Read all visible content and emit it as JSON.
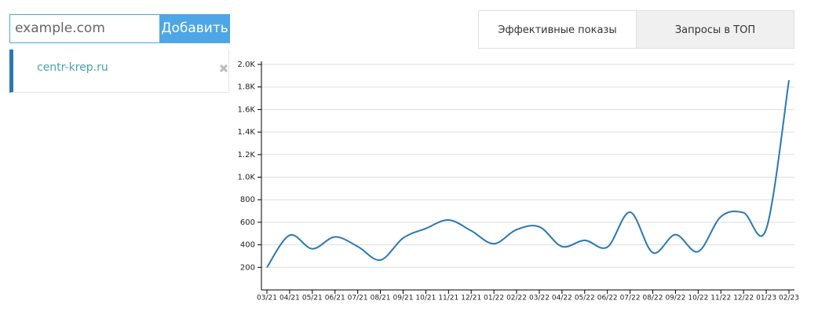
{
  "search": {
    "placeholder": "example.com",
    "button": "Добавить"
  },
  "tabs": [
    "Эффективные показы",
    "Запросы в ТОП"
  ],
  "sites": [
    "centr-krep.ru"
  ],
  "chart_data": {
    "type": "line",
    "categories": [
      "03/21",
      "04/21",
      "05/21",
      "06/21",
      "07/21",
      "08/21",
      "09/21",
      "10/21",
      "11/21",
      "12/21",
      "01/22",
      "02/22",
      "03/22",
      "04/22",
      "05/22",
      "06/22",
      "07/22",
      "08/22",
      "09/22",
      "10/22",
      "11/22",
      "12/22",
      "01/23",
      "02/23"
    ],
    "series": [
      {
        "color": "#2a78b5",
        "values": [
          200,
          485,
          365,
          470,
          385,
          265,
          460,
          545,
          620,
          525,
          410,
          535,
          560,
          385,
          440,
          380,
          690,
          330,
          490,
          340,
          650,
          685,
          540,
          1860
        ]
      }
    ],
    "ylim": [
      0,
      2000
    ],
    "yticks": [
      200,
      400,
      600,
      800,
      {
        "value": 1000,
        "label": "1.0K"
      },
      {
        "value": 1200,
        "label": "1.2K"
      },
      {
        "value": 1400,
        "label": "1.4K"
      },
      {
        "value": 1600,
        "label": "1.6K"
      },
      {
        "value": 1800,
        "label": "1.8K"
      },
      {
        "value": 2000,
        "label": "2.0K"
      }
    ],
    "grid": true
  }
}
